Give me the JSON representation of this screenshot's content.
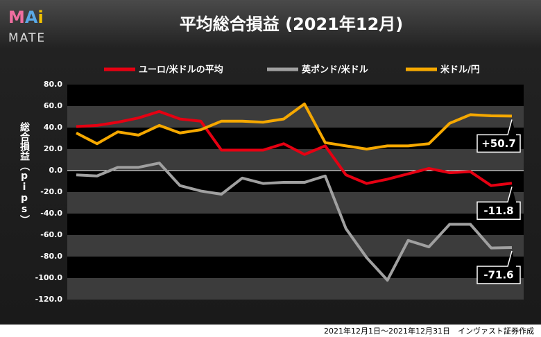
{
  "logo": {
    "letters": [
      "M",
      "A",
      "i"
    ],
    "colors": [
      "#f06ea0",
      "#5aa9e6",
      "#f5c400"
    ],
    "bottom": "MATE"
  },
  "footer": "2021年12月1日～2021年12月31日　インヴァスト証券作成",
  "chart_data": {
    "type": "line",
    "title": "平均総合損益 (2021年12月)",
    "y_label": "総合損益（pips）",
    "categories": [
      null,
      null,
      null,
      null,
      null,
      null,
      null,
      null,
      null,
      null,
      null,
      null,
      null,
      null,
      null,
      null,
      null,
      null,
      null,
      null,
      null,
      null
    ],
    "ylim": [
      -120,
      80
    ],
    "yticks": [
      {
        "value": 80,
        "label": "80.0"
      },
      {
        "value": 60,
        "label": "60.0"
      },
      {
        "value": 40,
        "label": "40.0"
      },
      {
        "value": 20,
        "label": "20.0"
      },
      {
        "value": 0,
        "label": "0.0"
      },
      {
        "value": -20,
        "label": "-20.0"
      },
      {
        "value": -40,
        "label": "-40.0"
      },
      {
        "value": -60,
        "label": "-60.0"
      },
      {
        "value": -80,
        "label": "-80.0"
      },
      {
        "value": -100,
        "label": "-100.0"
      },
      {
        "value": -120,
        "label": "-120.0"
      }
    ],
    "series": [
      {
        "name": "ユーロ/米ドルの平均",
        "color": "#e60012",
        "values": [
          41,
          42,
          45,
          49,
          55,
          48,
          46,
          19,
          19,
          19,
          25,
          15,
          23,
          -4,
          -12,
          -8,
          -3,
          2,
          -2,
          -1,
          -14,
          -11.8
        ],
        "end_label": "-11.8"
      },
      {
        "name": "英ポンド/米ドル",
        "color": "#a0a0a0",
        "values": [
          -4,
          -5,
          3,
          3,
          7,
          -14,
          -19,
          -22,
          -7,
          -12,
          -11,
          -11,
          -5,
          -54,
          -81,
          -102,
          -65,
          -71,
          -50,
          -50,
          -72,
          -71.6
        ],
        "end_label": "-71.6"
      },
      {
        "name": "米ドル/円",
        "color": "#f5a800",
        "values": [
          35,
          25,
          36,
          33,
          42,
          35,
          38,
          46,
          46,
          45,
          48,
          62,
          26,
          23,
          20,
          23,
          23,
          25,
          44,
          52,
          51,
          50.7
        ],
        "end_label": "+50.7"
      }
    ]
  }
}
